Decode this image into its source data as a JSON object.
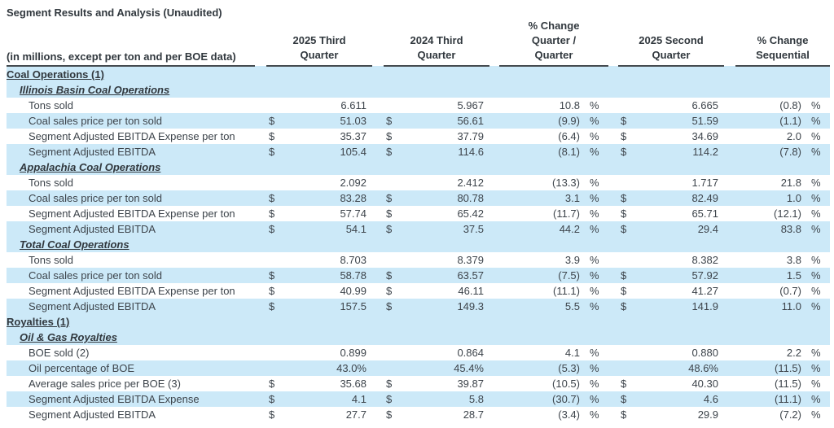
{
  "title": "Segment Results and Analysis (Unaudited)",
  "colors": {
    "row_shade": "#cce9f8",
    "text": "#3d444b",
    "header_border": "#454b50"
  },
  "table": {
    "row_label_header": "(in millions, except per ton and per BOE data)",
    "column_headers": [
      {
        "name": "2025-third-quarter",
        "lines": [
          "2025 Third",
          "Quarter"
        ]
      },
      {
        "name": "2024-third-quarter",
        "lines": [
          "2024 Third",
          "Quarter"
        ]
      },
      {
        "name": "pct-change-quarter-over-quarter",
        "lines": [
          "% Change",
          "Quarter /",
          "Quarter"
        ]
      },
      {
        "name": "2025-second-quarter",
        "lines": [
          "2025 Second",
          "Quarter"
        ]
      },
      {
        "name": "pct-change-sequential",
        "lines": [
          "% Change",
          "Sequential"
        ]
      }
    ],
    "cell_order": [
      "dollar1",
      "value1",
      "dollar2",
      "value2",
      "value3",
      "pct3",
      "dollar4",
      "value4",
      "value5",
      "pct5"
    ],
    "rows": [
      {
        "style": "section",
        "shaded": true,
        "label": "Coal Operations (1)"
      },
      {
        "style": "subsection",
        "shaded": true,
        "label": "Illinois Basin Coal Operations"
      },
      {
        "style": "data",
        "shaded": false,
        "label": "Tons sold",
        "cells": [
          "",
          "6.611",
          "",
          "5.967",
          "10.8",
          "%",
          "",
          "6.665",
          "(0.8)",
          "%"
        ]
      },
      {
        "style": "data",
        "shaded": true,
        "label": "Coal sales price per ton sold",
        "cells": [
          "$",
          "51.03",
          "$",
          "56.61",
          "(9.9)",
          "%",
          "$",
          "51.59",
          "(1.1)",
          "%"
        ]
      },
      {
        "style": "data",
        "shaded": false,
        "label": "Segment Adjusted EBITDA Expense per ton",
        "cells": [
          "$",
          "35.37",
          "$",
          "37.79",
          "(6.4)",
          "%",
          "$",
          "34.69",
          "2.0",
          "%"
        ]
      },
      {
        "style": "data",
        "shaded": true,
        "label": "Segment Adjusted EBITDA",
        "cells": [
          "$",
          "105.4",
          "$",
          "114.6",
          "(8.1)",
          "%",
          "$",
          "114.2",
          "(7.8)",
          "%"
        ]
      },
      {
        "style": "subsection",
        "shaded": true,
        "label": "Appalachia Coal Operations"
      },
      {
        "style": "data",
        "shaded": false,
        "label": "Tons sold",
        "cells": [
          "",
          "2.092",
          "",
          "2.412",
          "(13.3)",
          "%",
          "",
          "1.717",
          "21.8",
          "%"
        ]
      },
      {
        "style": "data",
        "shaded": true,
        "label": "Coal sales price per ton sold",
        "cells": [
          "$",
          "83.28",
          "$",
          "80.78",
          "3.1",
          "%",
          "$",
          "82.49",
          "1.0",
          "%"
        ]
      },
      {
        "style": "data",
        "shaded": false,
        "label": "Segment Adjusted EBITDA Expense per ton",
        "cells": [
          "$",
          "57.74",
          "$",
          "65.42",
          "(11.7)",
          "%",
          "$",
          "65.71",
          "(12.1)",
          "%"
        ]
      },
      {
        "style": "data",
        "shaded": true,
        "label": "Segment Adjusted EBITDA",
        "cells": [
          "$",
          "54.1",
          "$",
          "37.5",
          "44.2",
          "%",
          "$",
          "29.4",
          "83.8",
          "%"
        ]
      },
      {
        "style": "subsection",
        "shaded": true,
        "label": "Total Coal Operations"
      },
      {
        "style": "data",
        "shaded": false,
        "label": "Tons sold",
        "cells": [
          "",
          "8.703",
          "",
          "8.379",
          "3.9",
          "%",
          "",
          "8.382",
          "3.8",
          "%"
        ]
      },
      {
        "style": "data",
        "shaded": true,
        "label": "Coal sales price per ton sold",
        "cells": [
          "$",
          "58.78",
          "$",
          "63.57",
          "(7.5)",
          "%",
          "$",
          "57.92",
          "1.5",
          "%"
        ]
      },
      {
        "style": "data",
        "shaded": false,
        "label": "Segment Adjusted EBITDA Expense per ton",
        "cells": [
          "$",
          "40.99",
          "$",
          "46.11",
          "(11.1)",
          "%",
          "$",
          "41.27",
          "(0.7)",
          "%"
        ]
      },
      {
        "style": "data",
        "shaded": true,
        "label": "Segment Adjusted EBITDA",
        "cells": [
          "$",
          "157.5",
          "$",
          "149.3",
          "5.5",
          "%",
          "$",
          "141.9",
          "11.0",
          "%"
        ]
      },
      {
        "style": "section",
        "shaded": true,
        "label": "Royalties (1)"
      },
      {
        "style": "subsection",
        "shaded": true,
        "label": "Oil & Gas Royalties"
      },
      {
        "style": "data",
        "shaded": false,
        "label": "BOE sold (2)",
        "cells": [
          "",
          "0.899",
          "",
          "0.864",
          "4.1",
          "%",
          "",
          "0.880",
          "2.2",
          "%"
        ]
      },
      {
        "style": "data",
        "shaded": true,
        "label": "Oil percentage of BOE",
        "cells": [
          "",
          "43.0%",
          "",
          "45.4%",
          "(5.3)",
          "%",
          "",
          "48.6%",
          "(11.5)",
          "%"
        ]
      },
      {
        "style": "data",
        "shaded": false,
        "label": "Average sales price per BOE (3)",
        "cells": [
          "$",
          "35.68",
          "$",
          "39.87",
          "(10.5)",
          "%",
          "$",
          "40.30",
          "(11.5)",
          "%"
        ]
      },
      {
        "style": "data",
        "shaded": true,
        "label": "Segment Adjusted EBITDA Expense",
        "cells": [
          "$",
          "4.1",
          "$",
          "5.8",
          "(30.7)",
          "%",
          "$",
          "4.6",
          "(11.1)",
          "%"
        ]
      },
      {
        "style": "data",
        "shaded": false,
        "label": "Segment Adjusted EBITDA",
        "cells": [
          "$",
          "27.7",
          "$",
          "28.7",
          "(3.4)",
          "%",
          "$",
          "29.9",
          "(7.2)",
          "%"
        ]
      }
    ]
  }
}
